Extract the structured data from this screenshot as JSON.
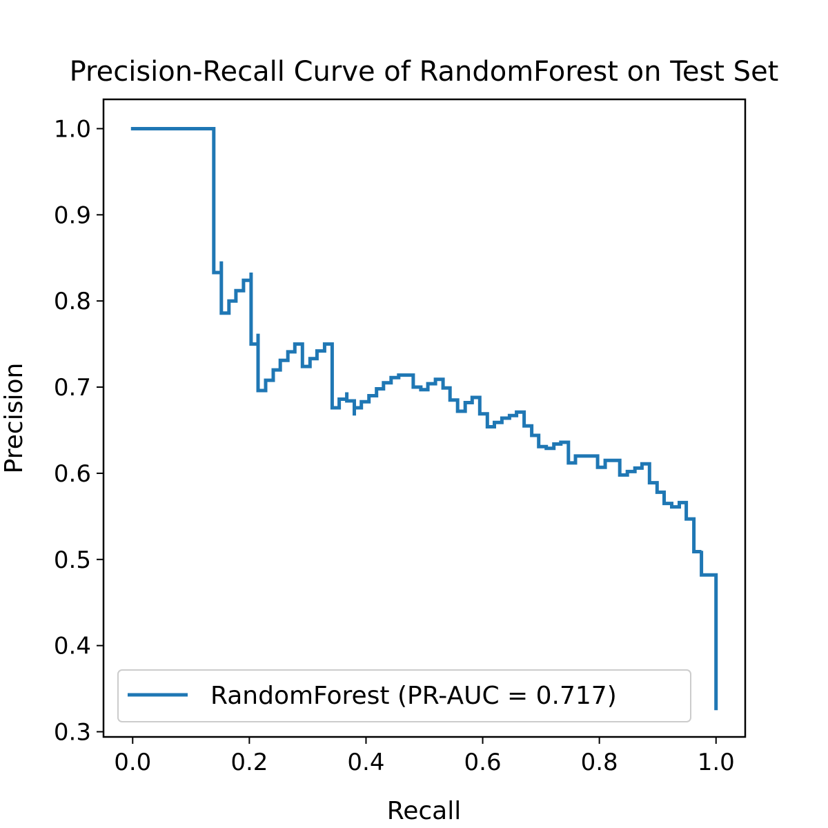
{
  "chart_data": {
    "type": "line",
    "title": "Precision-Recall Curve of RandomForest on Test Set",
    "xlabel": "Recall",
    "ylabel": "Precision",
    "xlim": [
      -0.05,
      1.05
    ],
    "ylim": [
      0.294,
      1.034
    ],
    "xticks": [
      "0.0",
      "0.2",
      "0.4",
      "0.6",
      "0.8",
      "1.0"
    ],
    "yticks": [
      "0.3",
      "0.4",
      "0.5",
      "0.6",
      "0.7",
      "0.8",
      "0.9",
      "1.0"
    ],
    "grid": false,
    "legend_position": "lower-left",
    "series": [
      {
        "name": "RandomForest (PR-AUC = 0.717)",
        "color": "#1f77b4",
        "drawstyle": "steps-post",
        "x": [
          0.0,
          0.139,
          0.139,
          0.152,
          0.152,
          0.165,
          0.177,
          0.19,
          0.203,
          0.203,
          0.215,
          0.215,
          0.228,
          0.241,
          0.253,
          0.266,
          0.278,
          0.291,
          0.291,
          0.304,
          0.316,
          0.329,
          0.329,
          0.342,
          0.342,
          0.354,
          0.367,
          0.367,
          0.38,
          0.38,
          0.392,
          0.405,
          0.418,
          0.43,
          0.443,
          0.456,
          0.468,
          0.481,
          0.481,
          0.494,
          0.506,
          0.519,
          0.532,
          0.532,
          0.544,
          0.544,
          0.557,
          0.557,
          0.57,
          0.582,
          0.595,
          0.595,
          0.608,
          0.608,
          0.62,
          0.633,
          0.646,
          0.658,
          0.671,
          0.671,
          0.684,
          0.684,
          0.696,
          0.696,
          0.709,
          0.722,
          0.734,
          0.747,
          0.747,
          0.759,
          0.772,
          0.785,
          0.797,
          0.797,
          0.81,
          0.81,
          0.823,
          0.835,
          0.848,
          0.861,
          0.873,
          0.873,
          0.886,
          0.886,
          0.899,
          0.899,
          0.911,
          0.911,
          0.924,
          0.937,
          0.949,
          0.949,
          0.962,
          0.962,
          0.975,
          0.975,
          0.987,
          1.0,
          1.0
        ],
        "y": [
          1.0,
          1.0,
          0.833,
          0.846,
          0.786,
          0.8,
          0.812,
          0.824,
          0.833,
          0.75,
          0.762,
          0.696,
          0.708,
          0.72,
          0.731,
          0.741,
          0.75,
          0.75,
          0.724,
          0.733,
          0.742,
          0.75,
          0.75,
          0.712,
          0.676,
          0.686,
          0.694,
          0.684,
          0.667,
          0.676,
          0.683,
          0.69,
          0.698,
          0.705,
          0.711,
          0.714,
          0.714,
          0.714,
          0.7,
          0.697,
          0.704,
          0.709,
          0.709,
          0.699,
          0.696,
          0.685,
          0.674,
          0.672,
          0.682,
          0.688,
          0.688,
          0.669,
          0.667,
          0.654,
          0.659,
          0.664,
          0.667,
          0.671,
          0.671,
          0.655,
          0.657,
          0.644,
          0.644,
          0.631,
          0.629,
          0.634,
          0.636,
          0.636,
          0.612,
          0.62,
          0.62,
          0.62,
          0.62,
          0.607,
          0.612,
          0.615,
          0.615,
          0.598,
          0.602,
          0.606,
          0.61,
          0.611,
          0.611,
          0.589,
          0.581,
          0.578,
          0.573,
          0.565,
          0.561,
          0.566,
          0.568,
          0.547,
          0.545,
          0.509,
          0.51,
          0.482,
          0.482,
          0.482,
          0.327
        ]
      }
    ]
  }
}
